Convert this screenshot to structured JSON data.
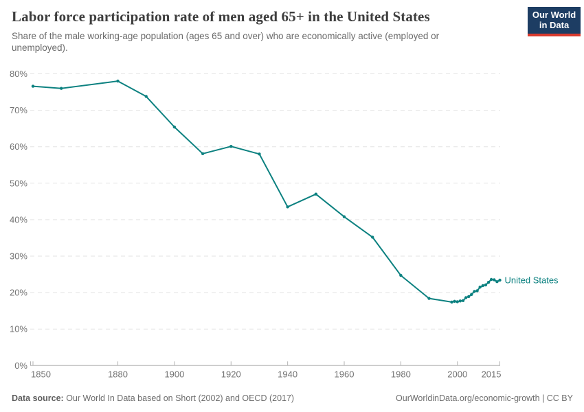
{
  "header": {
    "title": "Labor force participation rate of men aged 65+ in the United States",
    "subtitle": "Share of the male working-age population (ages 65 and over) who are economically active (employed or unemployed)."
  },
  "logo": {
    "line1": "Our World",
    "line2": "in Data",
    "bg_color": "#1d3d63",
    "bar_color": "#d93a2d"
  },
  "chart_data": {
    "type": "line",
    "title": "Labor force participation rate of men aged 65+ in the United States",
    "xlabel": "",
    "ylabel": "",
    "xlim": [
      1850,
      2015
    ],
    "ylim": [
      0,
      80
    ],
    "grid": "dashed-horizontal",
    "x_ticks": [
      1850,
      1880,
      1900,
      1920,
      1940,
      1960,
      1980,
      2000,
      2015
    ],
    "y_ticks": [
      0,
      10,
      20,
      30,
      40,
      50,
      60,
      70,
      80
    ],
    "y_tick_suffix": "%",
    "colors": {
      "line": "#0c8180",
      "grid": "#e3e3e3",
      "axis": "#b3b3b3",
      "tick_label": "#737373"
    },
    "series": [
      {
        "name": "United States",
        "label": "United States",
        "color": "#0c8180",
        "points": [
          [
            1850,
            76.6
          ],
          [
            1860,
            76.0
          ],
          [
            1880,
            78.0
          ],
          [
            1890,
            73.8
          ],
          [
            1900,
            65.4
          ],
          [
            1910,
            58.1
          ],
          [
            1920,
            60.1
          ],
          [
            1930,
            58.0
          ],
          [
            1940,
            43.5
          ],
          [
            1950,
            47.0
          ],
          [
            1960,
            40.8
          ],
          [
            1970,
            35.2
          ],
          [
            1980,
            24.7
          ],
          [
            1990,
            18.4
          ],
          [
            1998,
            17.4
          ],
          [
            1999,
            17.6
          ],
          [
            2000,
            17.5
          ],
          [
            2001,
            17.7
          ],
          [
            2002,
            17.8
          ],
          [
            2003,
            18.6
          ],
          [
            2004,
            18.9
          ],
          [
            2005,
            19.5
          ],
          [
            2006,
            20.3
          ],
          [
            2007,
            20.5
          ],
          [
            2008,
            21.5
          ],
          [
            2009,
            21.9
          ],
          [
            2010,
            22.1
          ],
          [
            2011,
            22.8
          ],
          [
            2012,
            23.6
          ],
          [
            2013,
            23.5
          ],
          [
            2014,
            23.0
          ],
          [
            2015,
            23.4
          ]
        ]
      }
    ]
  },
  "footer": {
    "source_label": "Data source:",
    "source_text": " Our World In Data based on Short (2002) and OECD (2017)",
    "right_text": "OurWorldinData.org/economic-growth | CC BY"
  }
}
